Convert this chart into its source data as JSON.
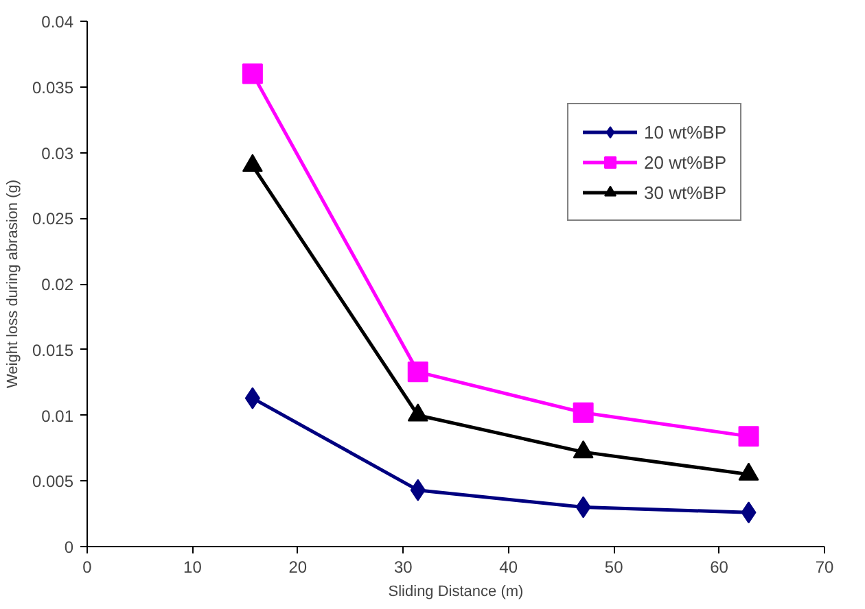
{
  "chart_data": {
    "type": "line",
    "xlabel": "Sliding Distance (m)",
    "ylabel": "Weight loss during abrasion (g)",
    "x": [
      15.7,
      31.4,
      47.1,
      62.8
    ],
    "series": [
      {
        "name": "10 wt%BP",
        "color": "#000080",
        "marker": "diamond",
        "values": [
          0.0113,
          0.0043,
          0.003,
          0.0026
        ]
      },
      {
        "name": "20 wt%BP",
        "color": "#ff00ff",
        "marker": "square",
        "values": [
          0.036,
          0.0133,
          0.0102,
          0.0084
        ]
      },
      {
        "name": "30 wt%BP",
        "color": "#000000",
        "marker": "triangle",
        "values": [
          0.029,
          0.01,
          0.0072,
          0.0055
        ]
      }
    ],
    "xlim": [
      0,
      70
    ],
    "xticks": [
      0,
      10,
      20,
      30,
      40,
      50,
      60,
      70
    ],
    "ylim": [
      0,
      0.04
    ],
    "yticks": [
      0,
      0.005,
      0.01,
      0.015,
      0.02,
      0.025,
      0.03,
      0.035,
      0.04
    ],
    "grid": false,
    "legend": "top right",
    "line_style": "solid"
  }
}
